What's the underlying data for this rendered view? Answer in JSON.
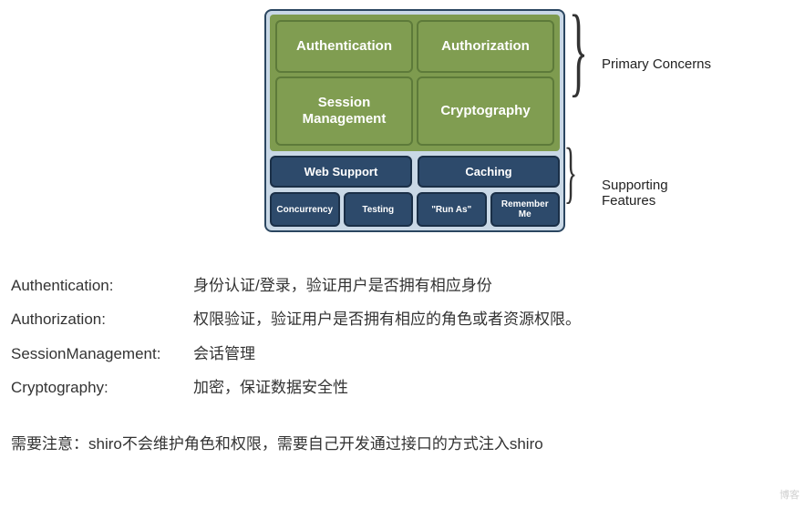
{
  "diagram": {
    "primary": {
      "boxes": [
        "Authentication",
        "Authorization",
        "Session\nManagement",
        "Cryptography"
      ],
      "box_bg": "#809d51",
      "box_border": "#5d7a3a",
      "container_bg": "#7e9b4f",
      "text_color": "#ffffff",
      "label": "Primary Concerns"
    },
    "supporting": {
      "row1": [
        "Web Support",
        "Caching"
      ],
      "row2": [
        "Concurrency",
        "Testing",
        "\"Run As\"",
        "Remember\nMe"
      ],
      "box_bg": "#2d4a6b",
      "box_border": "#1a2f47",
      "text_color": "#ffffff",
      "label": "Supporting Features"
    },
    "outer_bg": "#c9d8e6",
    "outer_border": "#2b4660"
  },
  "definitions": [
    {
      "term": "Authentication:",
      "desc": "身份认证/登录，验证用户是否拥有相应身份"
    },
    {
      "term": "Authorization:",
      "desc": "权限验证，验证用户是否拥有相应的角色或者资源权限。"
    },
    {
      "term": "SessionManagement:",
      "desc": "会话管理"
    },
    {
      "term": "Cryptography:",
      "desc": "加密，保证数据安全性"
    }
  ],
  "note": "需要注意：shiro不会维护角色和权限，需要自己开发通过接口的方式注入shiro",
  "watermark": "博客"
}
